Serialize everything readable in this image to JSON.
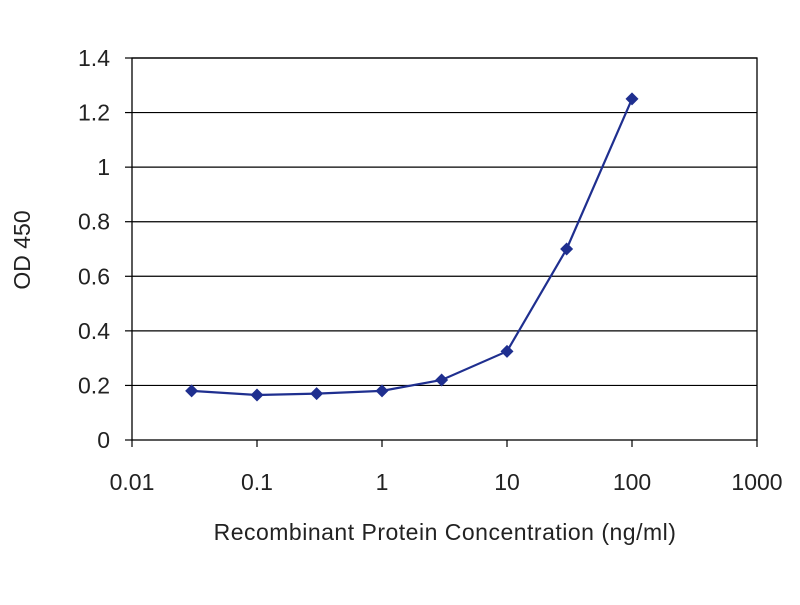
{
  "chart_data": {
    "type": "line",
    "xlabel": "Recombinant Protein Concentration (ng/ml)",
    "ylabel": "OD 450",
    "x_scale": "log",
    "xlim": [
      0.01,
      1000
    ],
    "ylim": [
      0,
      1.4
    ],
    "x_ticks": [
      "0.01",
      "0.1",
      "1",
      "10",
      "100",
      "1000"
    ],
    "y_ticks": [
      "0",
      "0.2",
      "0.4",
      "0.6",
      "0.8",
      "1",
      "1.2",
      "1.4"
    ],
    "grid": "horizontal",
    "legend": "none",
    "colors": {
      "series": "#1f2f8f",
      "grid": "#000000",
      "axis": "#000000"
    },
    "series": [
      {
        "x": [
          0.03,
          0.1,
          0.3,
          1,
          3,
          10,
          30,
          100
        ],
        "y": [
          0.18,
          0.165,
          0.17,
          0.18,
          0.22,
          0.325,
          0.7,
          1.25
        ]
      }
    ]
  }
}
